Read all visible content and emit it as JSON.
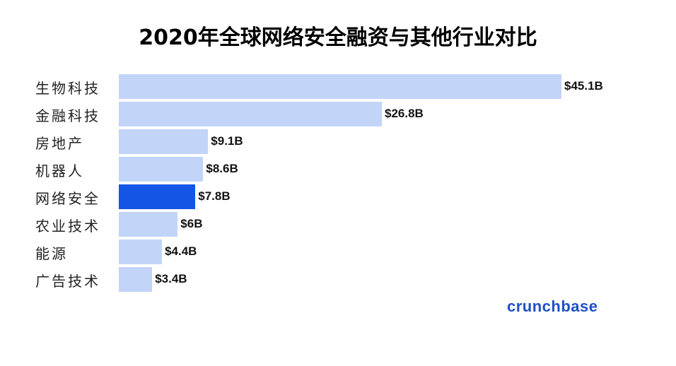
{
  "title": "2020年全球网络安全融资与其他行业对比",
  "brand": "crunchbase",
  "colors": {
    "bar_default": "#c2d4f8",
    "bar_highlight": "#1555e6",
    "brand": "#1f4fc8"
  },
  "chart_data": {
    "type": "bar",
    "orientation": "horizontal",
    "title": "2020年全球网络安全融资与其他行业对比",
    "categories": [
      "生物科技",
      "金融科技",
      "房地产",
      "机器人",
      "网络安全",
      "农业技术",
      "能源",
      "广告技术"
    ],
    "values": [
      45.1,
      26.8,
      9.1,
      8.6,
      7.8,
      6,
      4.4,
      3.4
    ],
    "value_labels": [
      "$45.1B",
      "$26.8B",
      "$9.1B",
      "$8.6B",
      "$7.8B",
      "$6B",
      "$4.4B",
      "$3.4B"
    ],
    "highlight": "网络安全",
    "xlabel": "",
    "ylabel": "",
    "unit": "USD billions",
    "grid": false,
    "legend": false
  }
}
